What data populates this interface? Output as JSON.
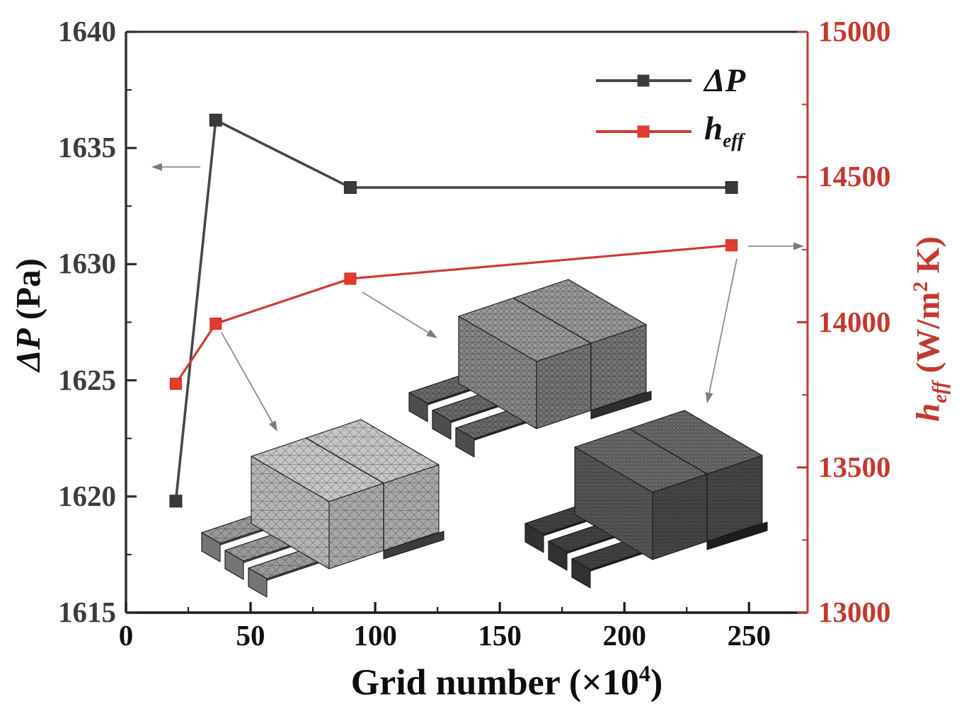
{
  "figure": {
    "background": "#ffffff"
  },
  "chart_data": {
    "type": "line",
    "title": "",
    "xlabel": {
      "main": "Grid number (×10",
      "sup": "4",
      "end": ")"
    },
    "x_axis": {
      "ticks": [
        0,
        50,
        100,
        150,
        200,
        250
      ],
      "minor_step": 25,
      "lim": [
        0,
        273.5
      ],
      "tick_label_color": "#101010"
    },
    "left_axis": {
      "title_main": "ΔP",
      "title_unit": " (Pa)",
      "lim": [
        1615,
        1640
      ],
      "ticks": [
        1615,
        1620,
        1625,
        1630,
        1635,
        1640
      ],
      "minor_step": 2.5,
      "color": "#2e2e2e",
      "tick_label_color": "#3c3c3c"
    },
    "right_axis": {
      "title_main": "h",
      "title_sub": "eff",
      "title_unit_pre": " (W/m",
      "title_unit_sup": "2",
      "title_unit_end": " K)",
      "lim": [
        13000,
        15000
      ],
      "ticks": [
        13000,
        13500,
        14000,
        14500,
        15000
      ],
      "minor_step": 250,
      "color": "#bf392f",
      "tick_label_color": "#c2392f"
    },
    "series": [
      {
        "name": "ΔP",
        "axis": "left",
        "marker": "square",
        "color": "#474747",
        "marker_color": "#3a3a3a",
        "x": [
          20,
          36,
          90,
          243
        ],
        "y": [
          1619.8,
          1636.2,
          1633.3,
          1633.3
        ]
      },
      {
        "name": "h_eff",
        "axis": "right",
        "marker": "square",
        "color": "#cf3a33",
        "marker_color": "#e23b2f",
        "x": [
          20,
          36,
          90,
          243
        ],
        "y": [
          13788,
          13995,
          14150,
          14265
        ]
      }
    ],
    "legend": {
      "position": "top-right",
      "items": [
        {
          "label": "ΔP"
        },
        {
          "label_main": "h",
          "label_sub": "eff"
        }
      ]
    },
    "annotations": {
      "axis_pointer_arrows": [
        {
          "series": "ΔP",
          "direction": "left"
        },
        {
          "series": "h_eff",
          "direction": "right"
        }
      ],
      "mesh_insets": [
        {
          "name": "coarse-mesh",
          "linked_grid_number": 36
        },
        {
          "name": "medium-mesh",
          "linked_grid_number": 90
        },
        {
          "name": "fine-mesh",
          "linked_grid_number": 243
        }
      ]
    }
  }
}
